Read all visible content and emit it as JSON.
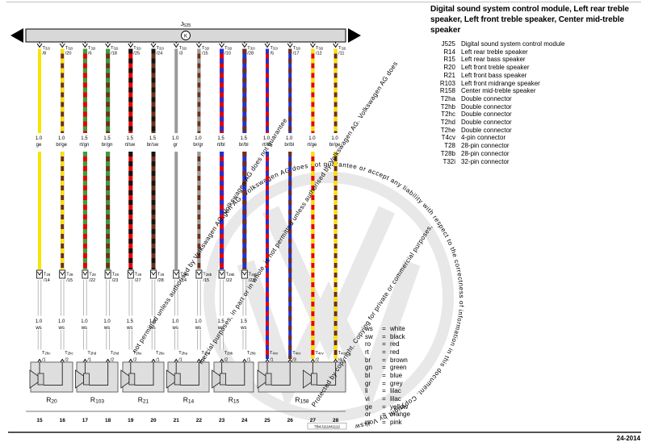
{
  "header": {
    "title": "Digital sound system control module, Left rear treble speaker, Left front treble speaker, Center mid-treble speaker"
  },
  "module": {
    "prefix": "J",
    "sub": "525",
    "symbol": "K"
  },
  "legend": [
    {
      "code": "J525",
      "desc": "Digital sound system control module"
    },
    {
      "code": "R14",
      "desc": "Left rear treble speaker"
    },
    {
      "code": "R15",
      "desc": "Left rear bass speaker"
    },
    {
      "code": "R20",
      "desc": "Left front treble speaker"
    },
    {
      "code": "R21",
      "desc": "Left front bass speaker"
    },
    {
      "code": "R103",
      "desc": "Left front midrange speaker"
    },
    {
      "code": "R158",
      "desc": "Center mid-treble speaker"
    },
    {
      "code": "T2ha",
      "desc": "Double connector"
    },
    {
      "code": "T2hb",
      "desc": "Double connector"
    },
    {
      "code": "T2hc",
      "desc": "Double connector"
    },
    {
      "code": "T2hd",
      "desc": "Double connector"
    },
    {
      "code": "T2he",
      "desc": "Double connector"
    },
    {
      "code": "T4cv",
      "desc": "4-pin connector"
    },
    {
      "code": "T28",
      "desc": "28-pin connector"
    },
    {
      "code": "T28b",
      "desc": "28-pin connector"
    },
    {
      "code": "T32i",
      "desc": "32-pin connector"
    }
  ],
  "color_key": [
    {
      "code": "ws",
      "name": "white"
    },
    {
      "code": "sw",
      "name": "black"
    },
    {
      "code": "ro",
      "name": "red"
    },
    {
      "code": "rt",
      "name": "red"
    },
    {
      "code": "br",
      "name": "brown"
    },
    {
      "code": "gn",
      "name": "green"
    },
    {
      "code": "bl",
      "name": "blue"
    },
    {
      "code": "gr",
      "name": "grey"
    },
    {
      "code": "li",
      "name": "lilac"
    },
    {
      "code": "vi",
      "name": "lilac"
    },
    {
      "code": "ge",
      "name": "yellow"
    },
    {
      "code": "or",
      "name": "orange"
    },
    {
      "code": "rs",
      "name": "pink"
    }
  ],
  "wires": [
    {
      "conn_prefix": "T",
      "conn_sub": "32i",
      "pin": "/8",
      "gauge": "1.0",
      "color": "ge",
      "hex": "#f7e400",
      "hex_dash": null,
      "mid_prefix": "T",
      "mid_sub": "28",
      "mid_pin": "/14",
      "lower_gauge": "1.0",
      "lower_color": "ws",
      "term_prefix": "T",
      "term_sub": "2hc",
      "term_pin": "/1",
      "track": "15"
    },
    {
      "conn_prefix": "T",
      "conn_sub": "32i",
      "pin": "/20",
      "gauge": "1.0",
      "color": "br/ge",
      "hex": "#702f16",
      "hex_dash": "#f7e400",
      "mid_prefix": "T",
      "mid_sub": "28",
      "mid_pin": "/15",
      "lower_gauge": "1.0",
      "lower_color": "ws",
      "term_prefix": "T",
      "term_sub": "2hc",
      "term_pin": "/2",
      "track": "16"
    },
    {
      "conn_prefix": "T",
      "conn_sub": "32i",
      "pin": "/6",
      "gauge": "1.5",
      "color": "rt/gn",
      "hex": "#e60000",
      "hex_dash": "#3f9b3f",
      "mid_prefix": "T",
      "mid_sub": "28",
      "mid_pin": "/22",
      "lower_gauge": "1.0",
      "lower_color": "ws",
      "term_prefix": "T",
      "term_sub": "2hd",
      "term_pin": "/1",
      "track": "17"
    },
    {
      "conn_prefix": "T",
      "conn_sub": "32i",
      "pin": "/18",
      "gauge": "1.5",
      "color": "br/gn",
      "hex": "#702f16",
      "hex_dash": "#3f9b3f",
      "mid_prefix": "T",
      "mid_sub": "28",
      "mid_pin": "/23",
      "lower_gauge": "1.0",
      "lower_color": "ws",
      "term_prefix": "T",
      "term_sub": "2hd",
      "term_pin": "/2",
      "track": "18"
    },
    {
      "conn_prefix": "T",
      "conn_sub": "32i",
      "pin": "/25",
      "gauge": "1.5",
      "color": "rt/sw",
      "hex": "#e60000",
      "hex_dash": "#141414",
      "mid_prefix": "T",
      "mid_sub": "28",
      "mid_pin": "/27",
      "lower_gauge": "1.5",
      "lower_color": "ws",
      "term_prefix": "T",
      "term_sub": "2he",
      "term_pin": "/2",
      "track": "19"
    },
    {
      "conn_prefix": "T",
      "conn_sub": "32i",
      "pin": "/24",
      "gauge": "1.5",
      "color": "br/sw",
      "hex": "#702f16",
      "hex_dash": "#141414",
      "mid_prefix": "T",
      "mid_sub": "28",
      "mid_pin": "/28",
      "lower_gauge": "1.5",
      "lower_color": "ws",
      "term_prefix": "T",
      "term_sub": "2he",
      "term_pin": "/1",
      "track": "20"
    },
    {
      "conn_prefix": "T",
      "conn_sub": "32i",
      "pin": "/3",
      "gauge": "1.0",
      "color": "gr",
      "hex": "#9a9a9a",
      "hex_dash": null,
      "mid_prefix": "T",
      "mid_sub": "28b",
      "mid_pin": "/14",
      "lower_gauge": "1.0",
      "lower_color": "ws",
      "term_prefix": "T",
      "term_sub": "2ha",
      "term_pin": "/1",
      "track": "21"
    },
    {
      "conn_prefix": "T",
      "conn_sub": "32i",
      "pin": "/15",
      "gauge": "1.0",
      "color": "br/gr",
      "hex": "#702f16",
      "hex_dash": "#9a9a9a",
      "mid_prefix": "T",
      "mid_sub": "28b",
      "mid_pin": "/15",
      "lower_gauge": "1.0",
      "lower_color": "ws",
      "term_prefix": "T",
      "term_sub": "2ha",
      "term_pin": "/2",
      "track": "22"
    },
    {
      "conn_prefix": "T",
      "conn_sub": "32i",
      "pin": "/10",
      "gauge": "1.5",
      "color": "rt/bl",
      "hex": "#e60000",
      "hex_dash": "#2330d4",
      "mid_prefix": "T",
      "mid_sub": "28b",
      "mid_pin": "/22",
      "lower_gauge": "1.5",
      "lower_color": "ws",
      "term_prefix": "T",
      "term_sub": "2hb",
      "term_pin": "/2",
      "track": "23"
    },
    {
      "conn_prefix": "T",
      "conn_sub": "32i",
      "pin": "/28",
      "gauge": "1.5",
      "color": "br/bl",
      "hex": "#2330d4",
      "hex_dash": "#702f16",
      "mid_prefix": "T",
      "mid_sub": "28b",
      "mid_pin": "/23",
      "lower_gauge": "1.5",
      "lower_color": "ws",
      "term_prefix": "T",
      "term_sub": "2hb",
      "term_pin": "/1",
      "track": "24"
    },
    {
      "conn_prefix": "T",
      "conn_sub": "32i",
      "pin": "/5",
      "gauge": "1.0",
      "color": "rt/bl",
      "hex": "#e60000",
      "hex_dash": "#2330d4",
      "mid_prefix": null,
      "mid_sub": null,
      "mid_pin": null,
      "lower_gauge": null,
      "lower_color": null,
      "term_prefix": "T",
      "term_sub": "4cv",
      "term_pin": "/1",
      "track": "25"
    },
    {
      "conn_prefix": "T",
      "conn_sub": "32i",
      "pin": "/17",
      "gauge": "1.0",
      "color": "br/bl",
      "hex": "#2330d4",
      "hex_dash": "#702f16",
      "mid_prefix": null,
      "mid_sub": null,
      "mid_pin": null,
      "lower_gauge": null,
      "lower_color": null,
      "term_prefix": "T",
      "term_sub": "4cv",
      "term_pin": "/3",
      "track": "26"
    },
    {
      "conn_prefix": "T",
      "conn_sub": "32i",
      "pin": "/12",
      "gauge": "1.0",
      "color": "rt/ge",
      "hex": "#e60000",
      "hex_dash": "#f7e400",
      "mid_prefix": null,
      "mid_sub": null,
      "mid_pin": null,
      "lower_gauge": null,
      "lower_color": null,
      "term_prefix": "T",
      "term_sub": "4cv",
      "term_pin": "/2",
      "track": "27"
    },
    {
      "conn_prefix": "T",
      "conn_sub": "32i",
      "pin": "/11",
      "gauge": "1.0",
      "color": "br/ge",
      "hex": "#702f16",
      "hex_dash": "#f7e400",
      "mid_prefix": null,
      "mid_sub": null,
      "mid_pin": null,
      "lower_gauge": null,
      "lower_color": null,
      "term_prefix": "T",
      "term_sub": "4cv",
      "term_pin": "/4",
      "track": "28"
    }
  ],
  "speakers": [
    {
      "prefix": "R",
      "sub": "20"
    },
    {
      "prefix": "R",
      "sub": "103"
    },
    {
      "prefix": "R",
      "sub": "21"
    },
    {
      "prefix": "R",
      "sub": "14"
    },
    {
      "prefix": "R",
      "sub": "15"
    },
    {
      "prefix": "R",
      "sub": "158"
    }
  ],
  "watermark": {
    "curved": "agen AG. Volkswagen AG does not guarantee or accept any liability with respect to the correctness of information in this document. Copyright by Volksw",
    "diag1": "mercial purposes, in part or in whole, is not permitted unless authorised by Volkswagen AG. Volkswagen AG does",
    "diag2": "Protected by copyright. Copying for private or commercial purposes,",
    "diag3": "not permitted unless authorised by Volkswagen AG. Volkswagen AG does not guarantee"
  },
  "footer": {
    "diagram_code": "7B4J111M1112",
    "page_ref": "24-2014"
  }
}
